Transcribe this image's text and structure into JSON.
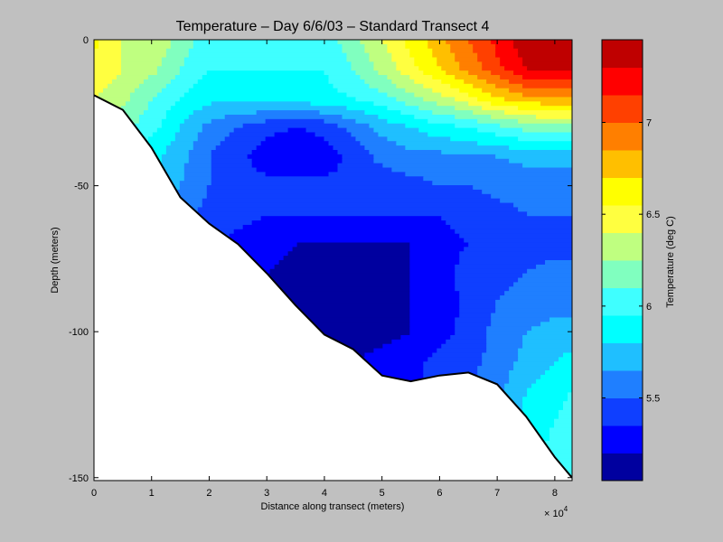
{
  "chart_data": {
    "type": "contourf",
    "title": "Temperature – Day 6/6/03 – Standard Transect 4",
    "xlabel": "Distance along transect (meters)",
    "ylabel": "Depth (meters)",
    "x_multiplier": "× 10",
    "x_multiplier_exp": "4",
    "xlim": [
      0,
      83000
    ],
    "ylim": [
      -151,
      0
    ],
    "x_ticks": [
      0,
      1,
      2,
      3,
      4,
      5,
      6,
      7,
      8
    ],
    "y_ticks": [
      0,
      -50,
      -100,
      -150
    ],
    "colorbar": {
      "label": "Temperature (deg C)",
      "clim": [
        5.05,
        7.45
      ],
      "ticks": [
        5.5,
        6,
        6.5,
        7
      ],
      "levels": [
        5.05,
        5.2,
        5.35,
        5.5,
        5.65,
        5.8,
        5.95,
        6.1,
        6.25,
        6.4,
        6.55,
        6.7,
        6.85,
        7.0,
        7.15,
        7.3,
        7.45
      ],
      "colors": [
        "#00009f",
        "#0000ff",
        "#0f3fff",
        "#1f7fff",
        "#1fbfff",
        "#00ffff",
        "#3fffff",
        "#80ffbf",
        "#bfff80",
        "#ffff40",
        "#ffff00",
        "#ffbf00",
        "#ff7f00",
        "#ff4000",
        "#ff0000",
        "#bf0000"
      ]
    },
    "bottom_profile": {
      "x": [
        0,
        5000,
        10000,
        15000,
        20000,
        25000,
        30000,
        35000,
        40000,
        45000,
        50000,
        55000,
        60000,
        65000,
        70000,
        75000,
        80000,
        83000
      ],
      "depth": [
        -19,
        -24,
        -37,
        -54,
        -63,
        -70,
        -80,
        -91,
        -101,
        -106,
        -115,
        -117,
        -115,
        -114,
        -118,
        -129,
        -143,
        -150
      ]
    },
    "temperature_grid": {
      "x": [
        0,
        5000,
        10000,
        15000,
        20000,
        25000,
        30000,
        35000,
        40000,
        45000,
        50000,
        55000,
        60000,
        65000,
        70000,
        75000,
        80000,
        83000
      ],
      "depth": [
        0,
        -10,
        -20,
        -30,
        -40,
        -50,
        -60,
        -70,
        -80,
        -90,
        -100,
        -110,
        -120,
        -130,
        -140,
        -150
      ],
      "values": [
        [
          6.6,
          6.4,
          6.4,
          6.2,
          6.0,
          6.0,
          6.0,
          6.0,
          6.0,
          6.2,
          6.4,
          6.6,
          6.8,
          7.0,
          7.2,
          7.4,
          7.4,
          7.4
        ],
        [
          6.5,
          6.4,
          6.3,
          6.1,
          5.95,
          5.95,
          5.95,
          5.95,
          5.95,
          6.1,
          6.3,
          6.5,
          6.7,
          6.9,
          7.1,
          7.3,
          7.35,
          7.35
        ],
        [
          6.4,
          6.3,
          6.1,
          5.95,
          5.85,
          5.85,
          5.85,
          5.9,
          5.9,
          5.95,
          6.05,
          6.2,
          6.35,
          6.5,
          6.7,
          6.8,
          6.85,
          6.85
        ],
        [
          6.3,
          6.15,
          6.0,
          5.8,
          5.6,
          5.5,
          5.4,
          5.35,
          5.4,
          5.55,
          5.7,
          5.8,
          5.9,
          5.95,
          6.05,
          6.15,
          6.2,
          6.2
        ],
        [
          6.2,
          6.0,
          5.85,
          5.7,
          5.5,
          5.4,
          5.25,
          5.2,
          5.25,
          5.4,
          5.55,
          5.6,
          5.6,
          5.65,
          5.65,
          5.7,
          5.7,
          5.7
        ],
        [
          6.1,
          5.9,
          5.8,
          5.65,
          5.5,
          5.45,
          5.4,
          5.4,
          5.4,
          5.4,
          5.4,
          5.45,
          5.5,
          5.5,
          5.55,
          5.55,
          5.55,
          5.55
        ],
        [
          6.0,
          5.8,
          5.7,
          5.55,
          5.45,
          5.4,
          5.35,
          5.35,
          5.35,
          5.35,
          5.35,
          5.35,
          5.35,
          5.4,
          5.45,
          5.5,
          5.5,
          5.5
        ],
        [
          5.9,
          5.7,
          5.6,
          5.5,
          5.4,
          5.3,
          5.25,
          5.2,
          5.2,
          5.2,
          5.2,
          5.2,
          5.3,
          5.35,
          5.4,
          5.45,
          5.45,
          5.45
        ],
        [
          5.85,
          5.6,
          5.5,
          5.45,
          5.35,
          5.25,
          5.2,
          5.15,
          5.1,
          5.1,
          5.15,
          5.2,
          5.3,
          5.4,
          5.45,
          5.5,
          5.55,
          5.55
        ],
        [
          5.8,
          5.55,
          5.45,
          5.4,
          5.3,
          5.25,
          5.2,
          5.15,
          5.1,
          5.1,
          5.1,
          5.2,
          5.25,
          5.4,
          5.5,
          5.55,
          5.6,
          5.6
        ],
        [
          5.8,
          5.55,
          5.45,
          5.4,
          5.3,
          5.25,
          5.2,
          5.15,
          5.1,
          5.1,
          5.15,
          5.2,
          5.3,
          5.4,
          5.55,
          5.65,
          5.7,
          5.7
        ],
        [
          5.8,
          5.55,
          5.45,
          5.4,
          5.3,
          5.25,
          5.2,
          5.2,
          5.2,
          5.2,
          5.25,
          5.3,
          5.4,
          5.45,
          5.55,
          5.7,
          5.8,
          5.85
        ],
        [
          5.8,
          5.55,
          5.45,
          5.4,
          5.3,
          5.25,
          5.2,
          5.2,
          5.2,
          5.2,
          5.25,
          5.3,
          5.4,
          5.5,
          5.6,
          5.8,
          5.9,
          5.95
        ],
        [
          5.8,
          5.55,
          5.45,
          5.4,
          5.3,
          5.25,
          5.2,
          5.2,
          5.2,
          5.2,
          5.25,
          5.3,
          5.4,
          5.5,
          5.65,
          5.85,
          5.95,
          6.0
        ],
        [
          5.8,
          5.55,
          5.45,
          5.4,
          5.3,
          5.25,
          5.2,
          5.2,
          5.2,
          5.2,
          5.25,
          5.3,
          5.4,
          5.5,
          5.65,
          5.85,
          6.0,
          6.05
        ],
        [
          5.8,
          5.55,
          5.45,
          5.4,
          5.3,
          5.25,
          5.2,
          5.2,
          5.2,
          5.2,
          5.25,
          5.3,
          5.4,
          5.5,
          5.65,
          5.85,
          6.0,
          6.05
        ]
      ]
    }
  }
}
